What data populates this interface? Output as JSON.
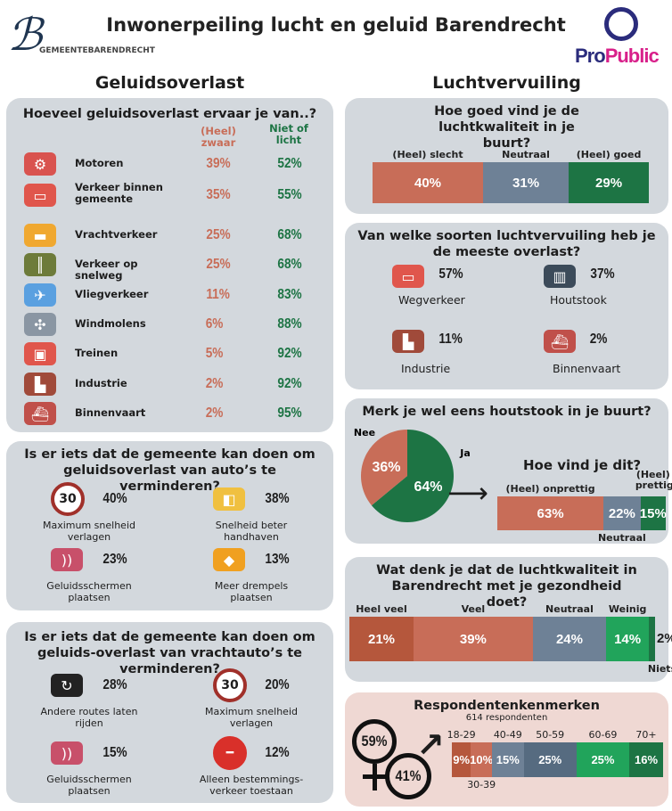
{
  "header": {
    "title": "Inwonerpeiling lucht en geluid Barendrecht",
    "logo_left": "GEMEENTEBARENDRECHT",
    "logo_right_pro": "Pro",
    "logo_right_public": "Public"
  },
  "colors": {
    "salmon": "#c86d58",
    "slate": "#6e8196",
    "green": "#1d7444",
    "bright_green": "#21a45b",
    "dark_red": "#b5573c",
    "dark_slate": "#566b80",
    "panel": "#d3d8dd",
    "pink_panel": "#efd8d3"
  },
  "left": {
    "section": "Geluidsoverlast",
    "noise": {
      "question": "Hoeveel geluidsoverlast ervaar je van..?",
      "col_heavy": "(Heel) zwaar",
      "col_light": "Niet of licht",
      "items": [
        {
          "label": "Motoren",
          "heavy": "39%",
          "light": "52%",
          "icon": "motorcycle-icon"
        },
        {
          "label": "Verkeer binnen gemeente",
          "heavy": "35%",
          "light": "55%",
          "icon": "car-icon"
        },
        {
          "label": "Vrachtverkeer",
          "heavy": "25%",
          "light": "68%",
          "icon": "truck-icon"
        },
        {
          "label": "Verkeer op snelweg",
          "heavy": "25%",
          "light": "68%",
          "icon": "highway-icon"
        },
        {
          "label": "Vliegverkeer",
          "heavy": "11%",
          "light": "83%",
          "icon": "airplane-icon"
        },
        {
          "label": "Windmolens",
          "heavy": "6%",
          "light": "88%",
          "icon": "windmill-icon"
        },
        {
          "label": "Treinen",
          "heavy": "5%",
          "light": "92%",
          "icon": "train-icon"
        },
        {
          "label": "Industrie",
          "heavy": "2%",
          "light": "92%",
          "icon": "factory-icon"
        },
        {
          "label": "Binnenvaart",
          "heavy": "2%",
          "light": "95%",
          "icon": "ship-icon"
        }
      ]
    },
    "cars": {
      "question": "Is er iets dat de gemeente kan doen om geluidsoverlast van auto’s te verminderen?",
      "items": [
        {
          "label": "Maximum snelheid verlagen",
          "value": "40%",
          "icon": "speed-limit-30-icon",
          "sign": "30"
        },
        {
          "label": "Snelheid beter handhaven",
          "value": "38%",
          "icon": "speed-camera-icon"
        },
        {
          "label": "Geluidsschermen plaatsen",
          "value": "23%",
          "icon": "noise-barrier-icon"
        },
        {
          "label": "Meer drempels plaatsen",
          "value": "13%",
          "icon": "speed-bump-sign-icon"
        }
      ]
    },
    "trucks": {
      "question": "Is er iets dat de gemeente kan doen om geluids-overlast van vrachtauto’s te verminderen?",
      "items": [
        {
          "label": "Andere routes laten rijden",
          "value": "28%",
          "icon": "detour-icon"
        },
        {
          "label": "Maximum snelheid verlagen",
          "value": "20%",
          "icon": "speed-limit-30-icon",
          "sign": "30"
        },
        {
          "label": "Geluidsschermen plaatsen",
          "value": "15%",
          "icon": "noise-barrier-icon"
        },
        {
          "label": "Alleen bestemmings-verkeer toestaan",
          "value": "12%",
          "icon": "no-entry-icon"
        }
      ]
    }
  },
  "right": {
    "section": "Luchtvervuiling",
    "quality_question": "Hoe goed vind je de luchtkwaliteit in je buurt?",
    "types": {
      "question": "Van welke soorten luchtvervuiling heb je de meeste overlast?",
      "items": [
        {
          "label": "Wegverkeer",
          "value": "57%",
          "icon": "car-icon"
        },
        {
          "label": "Houtstook",
          "value": "37%",
          "icon": "wood-stove-icon"
        },
        {
          "label": "Industrie",
          "value": "11%",
          "icon": "factory-icon"
        },
        {
          "label": "Binnenvaart",
          "value": "2%",
          "icon": "ship-icon"
        }
      ]
    },
    "wood": {
      "question": "Merk je wel eens houtstook in je buurt?",
      "sub_question": "Hoe vind je dit?"
    },
    "health_question": "Wat denk je dat de luchtkwaliteit in Barendrecht met je gezondheid doet?",
    "respondents": {
      "title": "Respondentenkenmerken",
      "count": "614 respondenten",
      "female": "59%",
      "male": "41%"
    }
  },
  "chart_data": [
    {
      "type": "bar",
      "stacked": true,
      "orientation": "horizontal",
      "id": "quality",
      "categories": [
        "(Heel) slecht",
        "Neutraal",
        "(Heel) goed"
      ],
      "values": [
        40,
        31,
        29
      ],
      "labels": [
        "40%",
        "31%",
        "29%"
      ],
      "colors": [
        "#c86d58",
        "#6e8196",
        "#1d7444"
      ]
    },
    {
      "type": "pie",
      "id": "wood",
      "categories": [
        "Nee",
        "Ja"
      ],
      "values": [
        36,
        64
      ],
      "labels": [
        "36%",
        "64%"
      ],
      "colors": [
        "#c86d58",
        "#1d7444"
      ]
    },
    {
      "type": "bar",
      "stacked": true,
      "orientation": "horizontal",
      "id": "wood_opinion",
      "categories": [
        "(Heel) onprettig",
        "Neutraal",
        "(Heel) prettig"
      ],
      "values": [
        63,
        22,
        15
      ],
      "labels": [
        "63%",
        "22%",
        "15%"
      ],
      "colors": [
        "#c86d58",
        "#6e8196",
        "#1d7444"
      ]
    },
    {
      "type": "bar",
      "stacked": true,
      "orientation": "horizontal",
      "id": "health",
      "categories": [
        "Heel veel",
        "Veel",
        "Neutraal",
        "Weinig",
        "Niets"
      ],
      "values": [
        21,
        39,
        24,
        14,
        2
      ],
      "labels": [
        "21%",
        "39%",
        "24%",
        "14%",
        "2%"
      ],
      "colors": [
        "#b5573c",
        "#c86d58",
        "#6e8196",
        "#21a45b",
        "#1d7444"
      ]
    },
    {
      "type": "bar",
      "stacked": true,
      "orientation": "horizontal",
      "id": "age",
      "categories": [
        "18-29",
        "30-39",
        "40-49",
        "50-59",
        "60-69",
        "70+"
      ],
      "values": [
        9,
        10,
        15,
        25,
        25,
        16
      ],
      "labels": [
        "9%",
        "10%",
        "15%",
        "25%",
        "25%",
        "16%"
      ],
      "colors": [
        "#b5573c",
        "#c86d58",
        "#6e8196",
        "#566b80",
        "#21a45b",
        "#1d7444"
      ]
    }
  ]
}
